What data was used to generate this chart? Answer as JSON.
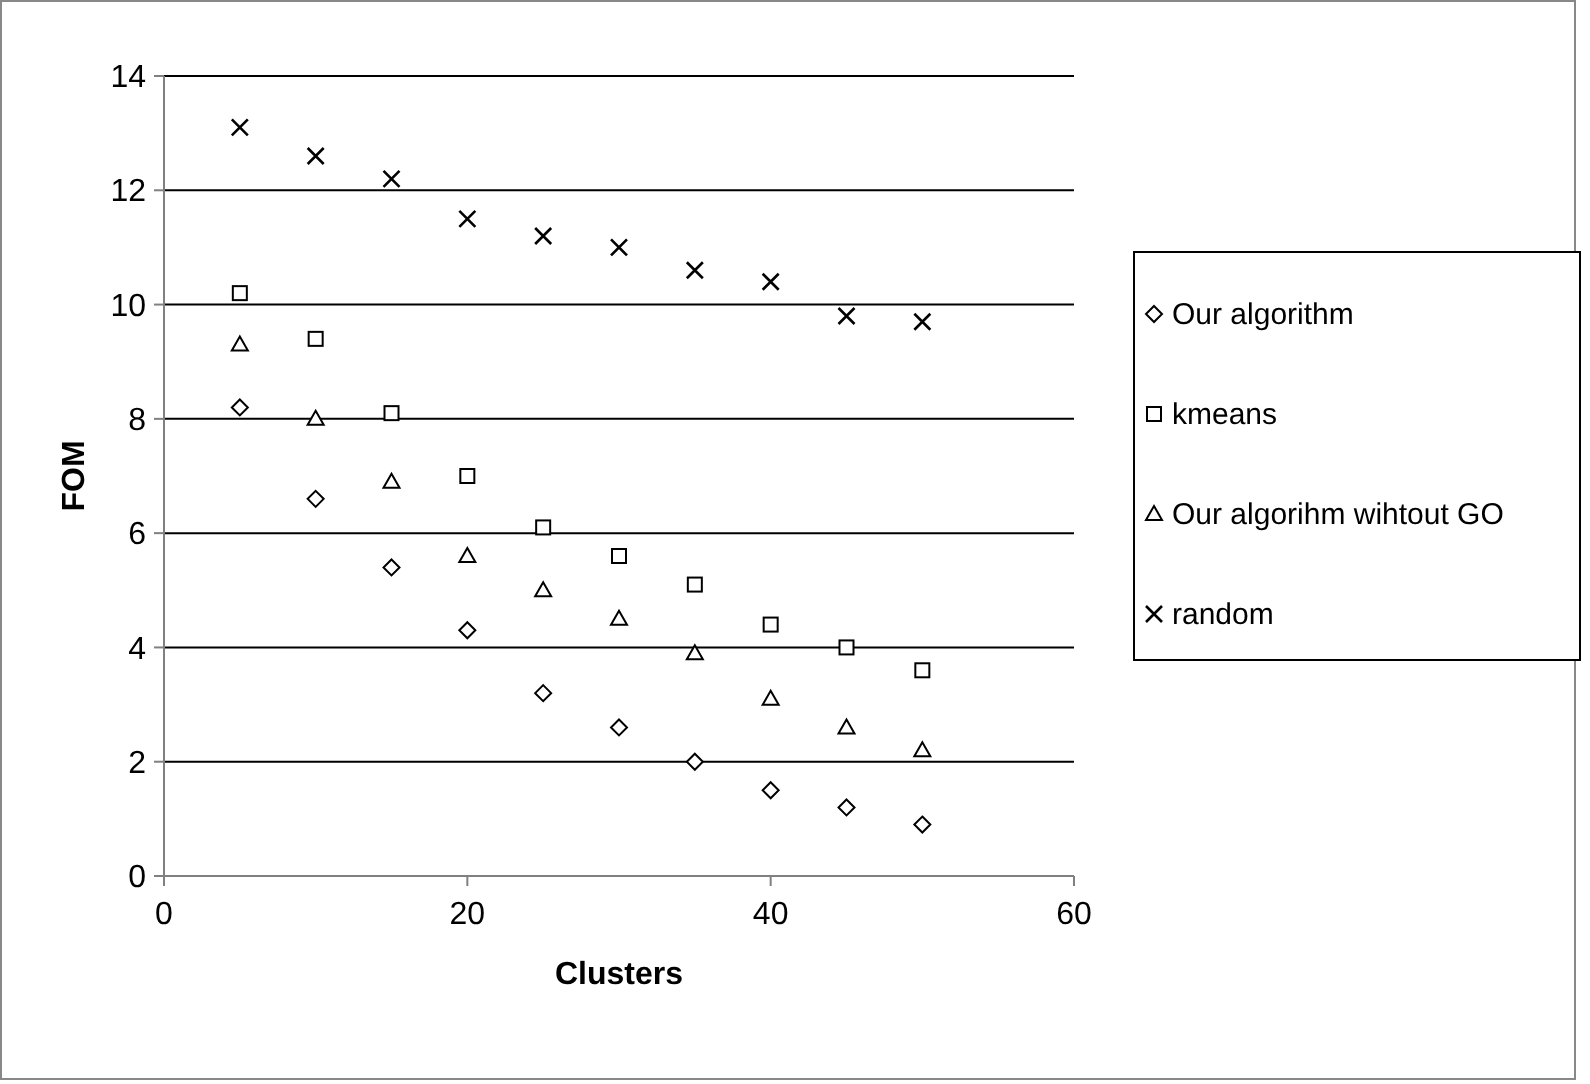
{
  "chart_data": {
    "type": "scatter",
    "xlabel": "Clusters",
    "ylabel": "FOM",
    "x": [
      5,
      10,
      15,
      20,
      25,
      30,
      35,
      40,
      45,
      50
    ],
    "xlim": [
      0,
      60
    ],
    "xticks": [
      0,
      20,
      40,
      60
    ],
    "ylim": [
      0,
      14
    ],
    "yticks": [
      0,
      2,
      4,
      6,
      8,
      10,
      12,
      14
    ],
    "grid": "y",
    "legend": "right",
    "series": [
      {
        "name": "Our algorithm",
        "color": "#000000",
        "marker": "diamond",
        "values": [
          8.2,
          6.6,
          5.4,
          4.3,
          3.2,
          2.6,
          2.0,
          1.5,
          1.2,
          0.9
        ]
      },
      {
        "name": "kmeans",
        "color": "#000000",
        "marker": "square",
        "values": [
          10.2,
          9.4,
          8.1,
          7.0,
          6.1,
          5.6,
          5.1,
          4.4,
          4.0,
          3.6
        ]
      },
      {
        "name": "Our algorihm wihtout GO",
        "color": "#000000",
        "marker": "triangle",
        "values": [
          9.3,
          8.0,
          6.9,
          5.6,
          5.0,
          4.5,
          3.9,
          3.1,
          2.6,
          2.2
        ]
      },
      {
        "name": "random",
        "color": "#000000",
        "marker": "cross",
        "values": [
          13.1,
          12.6,
          12.2,
          11.5,
          11.2,
          11.0,
          10.6,
          10.4,
          9.8,
          9.7
        ]
      }
    ]
  }
}
